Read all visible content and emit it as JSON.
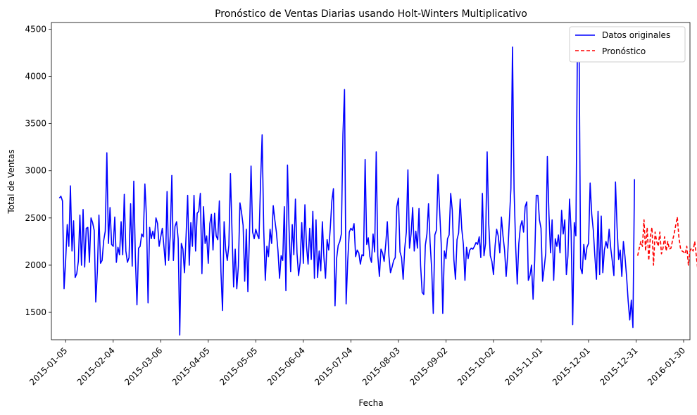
{
  "chart_data": {
    "type": "line",
    "title": "Pronóstico de Ventas Diarias usando Holt-Winters Multiplicativo",
    "xlabel": "Fecha",
    "ylabel": "Total de Ventas",
    "x_ticks": [
      "2015-01-05",
      "2015-02-04",
      "2015-03-06",
      "2015-04-05",
      "2015-05-05",
      "2015-06-04",
      "2015-07-04",
      "2015-08-03",
      "2015-09-02",
      "2015-10-02",
      "2015-11-01",
      "2015-12-01",
      "2015-12-31",
      "2016-01-30"
    ],
    "y_ticks": [
      1500,
      2000,
      2500,
      3000,
      3500,
      4000,
      4500
    ],
    "xlim": [
      "2014-12-27",
      "2016-02-03"
    ],
    "ylim": [
      1210,
      4570
    ],
    "legend_position": "top-right",
    "grid": false,
    "series": [
      {
        "name": "Datos originales",
        "color": "#0000ff",
        "style": "solid",
        "start_date": "2015-01-01",
        "values": [
          2710,
          2730,
          2680,
          1750,
          2050,
          2430,
          2200,
          2840,
          2150,
          2470,
          1870,
          1910,
          2040,
          2530,
          2000,
          2590,
          1980,
          2390,
          2400,
          2030,
          2500,
          2450,
          2370,
          1610,
          1930,
          2530,
          2020,
          2050,
          2260,
          2360,
          3190,
          2230,
          2610,
          2220,
          2200,
          2510,
          2030,
          2190,
          2110,
          2460,
          2110,
          2750,
          2150,
          2030,
          2080,
          2650,
          1990,
          2890,
          2080,
          1580,
          2180,
          2200,
          2330,
          2300,
          2860,
          2510,
          1600,
          2400,
          2280,
          2360,
          2280,
          2500,
          2440,
          2200,
          2300,
          2390,
          2200,
          2000,
          2780,
          2050,
          2310,
          2950,
          2050,
          2410,
          2460,
          2280,
          1260,
          2230,
          2170,
          1920,
          2310,
          2740,
          2000,
          2450,
          2200,
          2740,
          2150,
          2550,
          2570,
          2760,
          1910,
          2620,
          2230,
          2310,
          2020,
          2440,
          2540,
          2160,
          2550,
          2310,
          2270,
          2680,
          1930,
          1520,
          2460,
          2170,
          2050,
          2210,
          2970,
          2350,
          1770,
          2170,
          1750,
          1990,
          2660,
          2560,
          2420,
          1830,
          2380,
          1720,
          2320,
          3050,
          2350,
          2280,
          2380,
          2320,
          2280,
          2870,
          3380,
          2380,
          1840,
          2200,
          2090,
          2380,
          2230,
          2630,
          2480,
          2350,
          2150,
          1860,
          2100,
          2050,
          2620,
          1730,
          3060,
          2380,
          1930,
          2430,
          2110,
          2700,
          2130,
          1890,
          2030,
          2450,
          2020,
          2640,
          2200,
          2010,
          2390,
          2060,
          2570,
          1860,
          2480,
          1870,
          2150,
          1940,
          2460,
          2080,
          1860,
          2270,
          2160,
          2390,
          2680,
          2810,
          1570,
          2070,
          2210,
          2250,
          2330,
          3390,
          3860,
          1590,
          2040,
          2350,
          2390,
          2370,
          2440,
          2090,
          2160,
          2130,
          2010,
          2110,
          2100,
          3120,
          2220,
          2290,
          2090,
          2030,
          2330,
          2140,
          3200,
          2100,
          1880,
          2170,
          2130,
          2040,
          2220,
          2460,
          2100,
          1920,
          1980,
          2050,
          2080,
          2620,
          2710,
          2140,
          2080,
          1850,
          2180,
          2350,
          3010,
          2180,
          2330,
          2610,
          2150,
          2360,
          2180,
          2600,
          2000,
          1710,
          1690,
          2210,
          2330,
          2650,
          2240,
          1960,
          1490,
          2320,
          2370,
          2960,
          2590,
          2230,
          1490,
          2150,
          2070,
          2280,
          2320,
          2760,
          2580,
          2060,
          1850,
          2270,
          2340,
          2700,
          2380,
          2220,
          1840,
          2190,
          2070,
          2160,
          2180,
          2170,
          2200,
          2240,
          2220,
          2300,
          2080,
          2760,
          2100,
          2230,
          3200,
          2440,
          2100,
          2040,
          1900,
          2200,
          2380,
          2310,
          2130,
          2510,
          2310,
          2160,
          1880,
          2120,
          2470,
          2810,
          4310,
          2800,
          2200,
          1800,
          2230,
          2410,
          2470,
          2350,
          2620,
          2670,
          1840,
          1890,
          2000,
          1640,
          2050,
          2740,
          2740,
          2480,
          2390,
          1830,
          1970,
          2130,
          3150,
          2540,
          2130,
          2480,
          1840,
          2280,
          2200,
          2320,
          2130,
          2580,
          2330,
          2480,
          1900,
          2100,
          2700,
          2360,
          1370,
          2450,
          2310,
          4400,
          4410,
          1970,
          1910,
          2220,
          2060,
          2190,
          2230,
          2870,
          2540,
          2370,
          2090,
          1850,
          2570,
          1900,
          2520,
          1920,
          2160,
          2250,
          2180,
          2380,
          2180,
          2040,
          1890,
          2880,
          2400,
          2060,
          2160,
          1880,
          2250,
          2090,
          1880,
          1620,
          1420,
          1630,
          1340,
          2910
        ]
      },
      {
        "name": "Pronóstico",
        "color": "#ff0000",
        "style": "dashed",
        "start_date": "2016-01-01",
        "values": [
          2100,
          2180,
          2250,
          2200,
          2480,
          2150,
          2400,
          2050,
          2300,
          2400,
          2000,
          2350,
          2250,
          2200,
          2350,
          2120,
          2180,
          2300,
          2150,
          2250,
          2170,
          2180,
          2260,
          2330,
          2420,
          2510,
          2300,
          2180,
          2150,
          2140,
          2120,
          2200,
          2000,
          2150,
          2180,
          2150,
          2250,
          2100,
          1940,
          2200,
          2180,
          2150,
          2080
        ]
      }
    ]
  }
}
